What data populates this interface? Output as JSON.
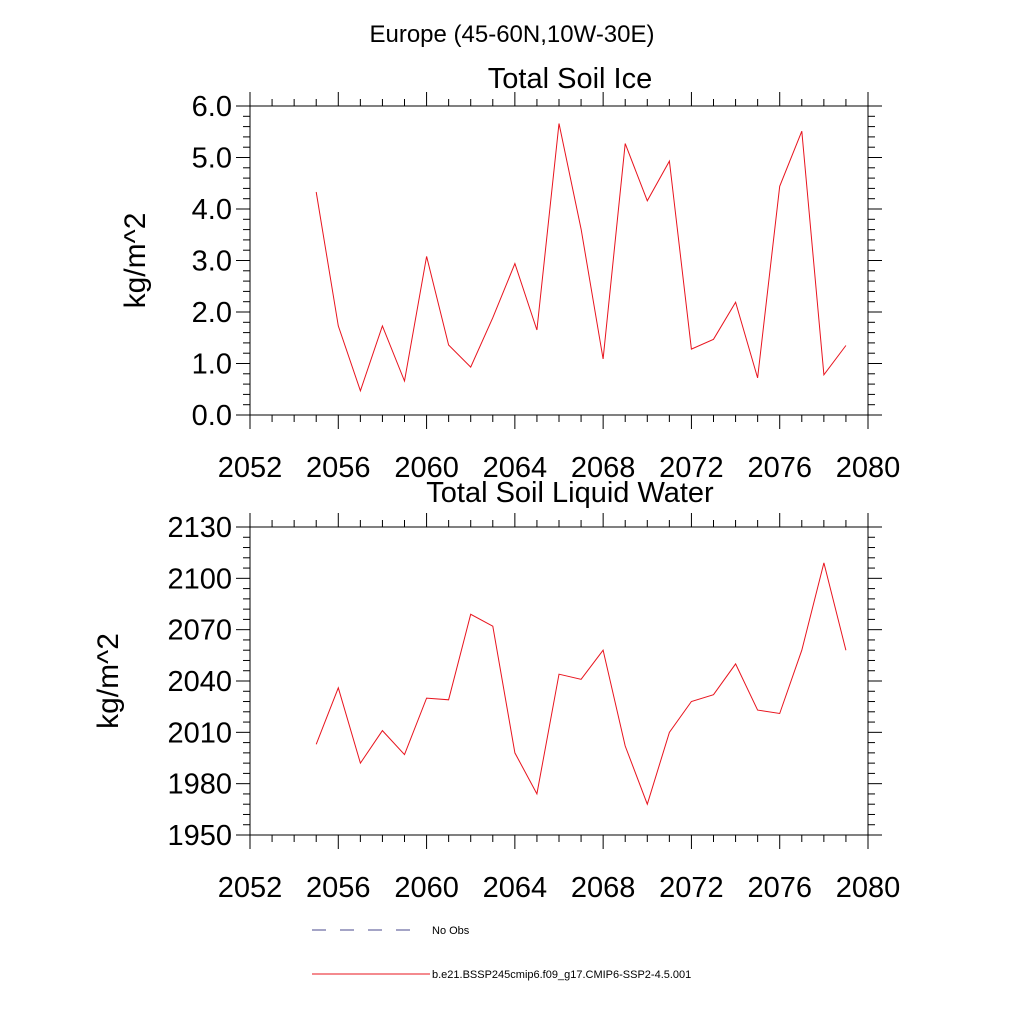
{
  "figure_title": "Europe (45-60N,10W-30E)",
  "colors": {
    "model": "#e8141e",
    "obs": "#4a4a8c"
  },
  "legend": [
    {
      "label": "No Obs",
      "style": "dashed",
      "color": "#4a4a8c"
    },
    {
      "label": "b.e21.BSSP245cmip6.f09_g17.CMIP6-SSP2-4.5.001",
      "style": "solid",
      "color": "#e8141e"
    }
  ],
  "chart_data": [
    {
      "type": "line",
      "title": "Total Soil Ice",
      "ylabel": "kg/m^2",
      "xlabel": "",
      "xlim": [
        2052,
        2080
      ],
      "ylim": [
        0,
        6
      ],
      "xticks": [
        "2052",
        "2056",
        "2060",
        "2064",
        "2068",
        "2072",
        "2076",
        "2080"
      ],
      "yticks": [
        "0.0",
        "1.0",
        "2.0",
        "3.0",
        "4.0",
        "5.0",
        "6.0"
      ],
      "x": [
        2055,
        2056,
        2057,
        2058,
        2059,
        2060,
        2061,
        2062,
        2063,
        2064,
        2065,
        2066,
        2067,
        2068,
        2069,
        2070,
        2071,
        2072,
        2073,
        2074,
        2075,
        2076,
        2077,
        2078,
        2079
      ],
      "series": [
        {
          "values": [
            4.33,
            1.73,
            0.47,
            1.73,
            0.66,
            3.08,
            1.36,
            0.93,
            1.89,
            2.94,
            1.65,
            5.66,
            3.61,
            1.09,
            5.27,
            4.16,
            4.93,
            1.28,
            1.47,
            2.19,
            0.72,
            4.44,
            5.51,
            0.78,
            1.35
          ]
        }
      ]
    },
    {
      "type": "line",
      "title": "Total Soil Liquid Water",
      "ylabel": "kg/m^2",
      "xlabel": "",
      "xlim": [
        2052,
        2080
      ],
      "ylim": [
        1950,
        2130
      ],
      "xticks": [
        "2052",
        "2056",
        "2060",
        "2064",
        "2068",
        "2072",
        "2076",
        "2080"
      ],
      "yticks": [
        "1950",
        "1980",
        "2010",
        "2040",
        "2070",
        "2100",
        "2130"
      ],
      "x": [
        2055,
        2056,
        2057,
        2058,
        2059,
        2060,
        2061,
        2062,
        2063,
        2064,
        2065,
        2066,
        2067,
        2068,
        2069,
        2070,
        2071,
        2072,
        2073,
        2074,
        2075,
        2076,
        2077,
        2078,
        2079
      ],
      "series": [
        {
          "values": [
            2003,
            2036,
            1992,
            2011,
            1997,
            2030,
            2029,
            2079,
            2072,
            1998,
            1974,
            2044,
            2041,
            2058,
            2002,
            1968,
            2010,
            2028,
            2032,
            2050,
            2023,
            2021,
            2058,
            2109,
            2058
          ]
        }
      ]
    }
  ]
}
